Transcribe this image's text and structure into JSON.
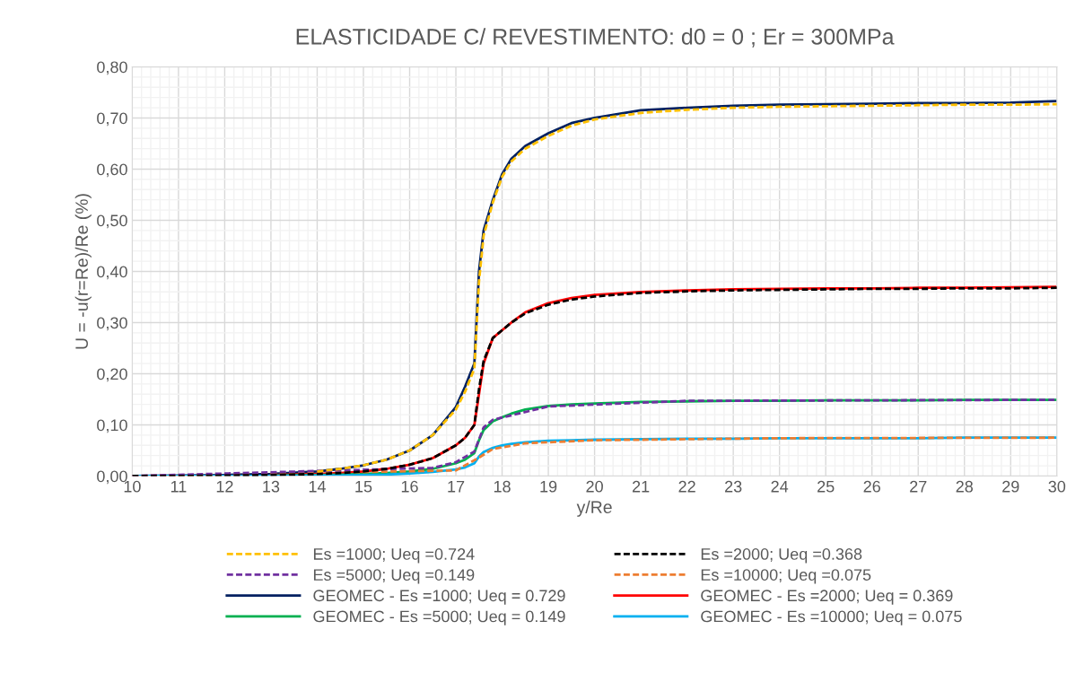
{
  "chart_data": {
    "type": "line",
    "title": "ELASTICIDADE C/ REVESTIMENTO: d0 = 0 ; Er = 300MPa",
    "xlabel": "y/Re",
    "ylabel": "U = -u(r=Re)/Re (%)",
    "x": [
      10,
      11,
      12,
      13,
      14,
      14.5,
      15,
      15.5,
      16,
      16.5,
      17,
      17.2,
      17.4,
      17.5,
      17.6,
      17.8,
      18,
      18.2,
      18.5,
      19,
      19.5,
      20,
      21,
      22,
      23,
      24,
      25,
      26,
      27,
      28,
      29,
      30
    ],
    "xlim": [
      10,
      30
    ],
    "xticks": [
      10,
      11,
      12,
      13,
      14,
      15,
      16,
      17,
      18,
      19,
      20,
      21,
      22,
      23,
      24,
      25,
      26,
      27,
      28,
      29,
      30
    ],
    "ylim": [
      0,
      0.8
    ],
    "yticks": [
      {
        "value": 0,
        "label": "0,00"
      },
      {
        "value": 0.1,
        "label": "0,10"
      },
      {
        "value": 0.2,
        "label": "0,20"
      },
      {
        "value": 0.3,
        "label": "0,30"
      },
      {
        "value": 0.4,
        "label": "0,40"
      },
      {
        "value": 0.5,
        "label": "0,50"
      },
      {
        "value": 0.6,
        "label": "0,60"
      },
      {
        "value": 0.7,
        "label": "0,70"
      },
      {
        "value": 0.8,
        "label": "0,80"
      }
    ],
    "grid": true,
    "legend": "bottom",
    "marker": "none",
    "series": [
      {
        "name": "Es =1000; Ueq =0.724",
        "color": "#ffc000",
        "line_style": "dashed",
        "x": [
          14,
          14.5,
          15,
          15.5,
          16,
          16.5,
          17,
          17.2,
          17.4,
          17.5,
          17.6,
          17.8,
          18,
          18.2,
          18.5,
          19,
          19.5,
          20,
          21,
          22,
          23,
          24,
          25,
          26,
          27,
          28,
          29,
          30
        ],
        "values": [
          0.009,
          0.014,
          0.021,
          0.032,
          0.05,
          0.08,
          0.13,
          0.165,
          0.21,
          0.38,
          0.47,
          0.535,
          0.585,
          0.615,
          0.64,
          0.665,
          0.685,
          0.697,
          0.71,
          0.716,
          0.72,
          0.722,
          0.723,
          0.724,
          0.725,
          0.726,
          0.726,
          0.727
        ]
      },
      {
        "name": "Es =2000; Ueq =0.368",
        "color": "#000000",
        "line_style": "dashed",
        "values": [
          0,
          0,
          0.001,
          0.002,
          0.004,
          0.006,
          0.009,
          0.014,
          0.022,
          0.035,
          0.06,
          0.075,
          0.1,
          0.17,
          0.225,
          0.27,
          0.285,
          0.3,
          0.318,
          0.335,
          0.345,
          0.351,
          0.358,
          0.361,
          0.363,
          0.364,
          0.365,
          0.366,
          0.366,
          0.367,
          0.367,
          0.368
        ]
      },
      {
        "name": "Es =5000; Ueq =0.149",
        "color": "#7030a0",
        "line_style": "dashed",
        "x": [
          10,
          16.5,
          17,
          17.4,
          17.6,
          17.8,
          19,
          22,
          26,
          30
        ],
        "values": [
          0,
          0.016,
          0.027,
          0.048,
          0.095,
          0.11,
          0.136,
          0.147,
          0.148,
          0.149
        ]
      },
      {
        "name": "Es =10000; Ueq =0.075",
        "color": "#ed7d31",
        "line_style": "dashed",
        "x": [
          10,
          17,
          17.5,
          17.8,
          18.5,
          20,
          24,
          30
        ],
        "values": [
          0,
          0.011,
          0.036,
          0.053,
          0.064,
          0.07,
          0.074,
          0.075
        ]
      },
      {
        "name": "GEOMEC - Es =1000; Ueq = 0.729",
        "color": "#002060",
        "line_style": "solid",
        "values": [
          0,
          0.001,
          0.002,
          0.004,
          0.009,
          0.014,
          0.021,
          0.032,
          0.05,
          0.08,
          0.135,
          0.175,
          0.22,
          0.4,
          0.48,
          0.54,
          0.59,
          0.62,
          0.645,
          0.67,
          0.69,
          0.7,
          0.715,
          0.72,
          0.724,
          0.726,
          0.727,
          0.728,
          0.729,
          0.729,
          0.73,
          0.733
        ]
      },
      {
        "name": "GEOMEC - Es =2000; Ueq = 0.369",
        "color": "#ff0000",
        "line_style": "solid",
        "x": [
          13,
          14,
          14.5,
          15,
          15.5,
          16,
          16.5,
          17,
          17.2,
          17.4,
          17.5,
          17.6,
          17.8,
          18,
          18.2,
          18.5,
          19,
          19.5,
          20,
          21,
          22,
          23,
          24,
          25,
          26,
          27,
          28,
          29,
          30
        ],
        "values": [
          0.002,
          0.004,
          0.006,
          0.009,
          0.014,
          0.022,
          0.035,
          0.06,
          0.075,
          0.1,
          0.16,
          0.22,
          0.27,
          0.285,
          0.3,
          0.32,
          0.338,
          0.348,
          0.354,
          0.36,
          0.363,
          0.365,
          0.366,
          0.367,
          0.367,
          0.368,
          0.368,
          0.369,
          0.37
        ]
      },
      {
        "name": "GEOMEC - Es =5000; Ueq = 0.149",
        "color": "#00b050",
        "line_style": "solid",
        "x": [
          13,
          14,
          14.5,
          15,
          15.5,
          16,
          16.5,
          17,
          17.2,
          17.4,
          17.5,
          17.6,
          17.8,
          18,
          18.2,
          18.5,
          19,
          19.5,
          20,
          21,
          22,
          23,
          24,
          25,
          26,
          27,
          28,
          29,
          30
        ],
        "values": [
          0.001,
          0.002,
          0.003,
          0.004,
          0.006,
          0.009,
          0.014,
          0.025,
          0.032,
          0.045,
          0.07,
          0.09,
          0.107,
          0.115,
          0.122,
          0.13,
          0.137,
          0.14,
          0.142,
          0.145,
          0.146,
          0.147,
          0.147,
          0.148,
          0.148,
          0.148,
          0.149,
          0.149,
          0.149
        ]
      },
      {
        "name": "GEOMEC - Es =10000; Ueq = 0.075",
        "color": "#00b0f0",
        "line_style": "solid",
        "values": [
          0,
          0,
          0,
          0,
          0.001,
          0.001,
          0.002,
          0.003,
          0.005,
          0.008,
          0.013,
          0.017,
          0.025,
          0.038,
          0.047,
          0.055,
          0.06,
          0.063,
          0.066,
          0.069,
          0.07,
          0.071,
          0.072,
          0.073,
          0.073,
          0.074,
          0.074,
          0.074,
          0.074,
          0.075,
          0.075,
          0.075
        ]
      }
    ]
  }
}
